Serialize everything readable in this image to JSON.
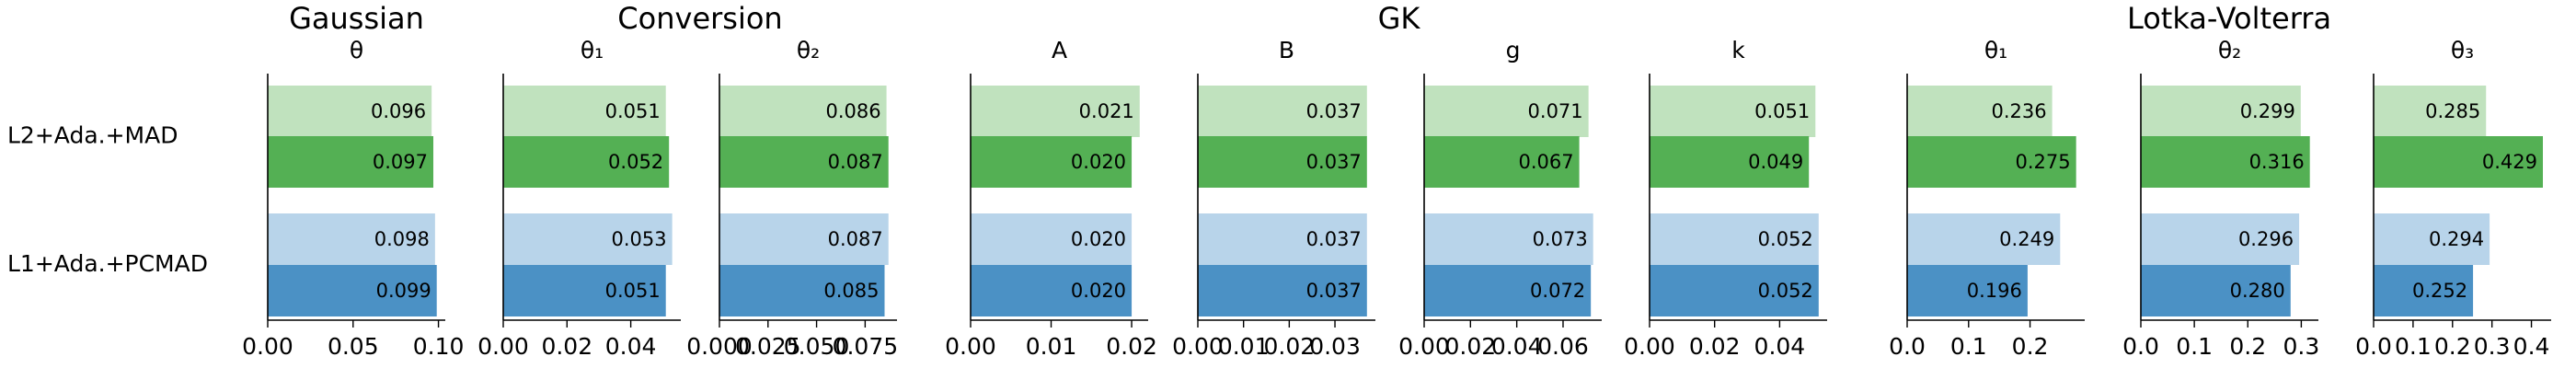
{
  "categories": [
    "L2+Ada.+MAD",
    "L1+Ada.+PCMAD"
  ],
  "colors": [
    [
      "#c0e2be",
      "#54b054"
    ],
    [
      "#b8d4ea",
      "#4b91c5"
    ]
  ],
  "chart_data": [
    {
      "title": "Gaussian",
      "panels": [
        {
          "type": "bar",
          "orientation": "horizontal",
          "subtitle": "θ",
          "series": [
            {
              "values": [
                0.096,
                0.098
              ],
              "value_labels": [
                "0.096",
                "0.098"
              ]
            },
            {
              "values": [
                0.097,
                0.099
              ],
              "value_labels": [
                "0.097",
                "0.099"
              ]
            }
          ],
          "xlim": [
            0,
            0.104
          ],
          "xticks": [
            {
              "value": 0,
              "label": "0.00"
            },
            {
              "value": 0.05,
              "label": "0.05"
            },
            {
              "value": 0.1,
              "label": "0.10"
            }
          ]
        }
      ]
    },
    {
      "title": "Conversion",
      "panels": [
        {
          "type": "bar",
          "orientation": "horizontal",
          "subtitle": "θ₁",
          "series": [
            {
              "values": [
                0.051,
                0.053
              ],
              "value_labels": [
                "0.051",
                "0.053"
              ]
            },
            {
              "values": [
                0.052,
                0.051
              ],
              "value_labels": [
                "0.052",
                "0.051"
              ]
            }
          ],
          "xlim": [
            0,
            0.0557
          ],
          "xticks": [
            {
              "value": 0,
              "label": "0.00"
            },
            {
              "value": 0.02,
              "label": "0.02"
            },
            {
              "value": 0.04,
              "label": "0.04"
            }
          ]
        },
        {
          "type": "bar",
          "orientation": "horizontal",
          "subtitle": "θ₂",
          "series": [
            {
              "values": [
                0.086,
                0.087
              ],
              "value_labels": [
                "0.086",
                "0.087"
              ]
            },
            {
              "values": [
                0.087,
                0.085
              ],
              "value_labels": [
                "0.087",
                "0.085"
              ]
            }
          ],
          "xlim": [
            0,
            0.0914
          ],
          "xticks": [
            {
              "value": 0,
              "label": "0.000"
            },
            {
              "value": 0.025,
              "label": "0.025"
            },
            {
              "value": 0.05,
              "label": "0.050"
            },
            {
              "value": 0.075,
              "label": "0.075"
            }
          ]
        }
      ]
    },
    {
      "title": "GK",
      "panels": [
        {
          "type": "bar",
          "orientation": "horizontal",
          "subtitle": "A",
          "series": [
            {
              "values": [
                0.021,
                0.02
              ],
              "value_labels": [
                "0.021",
                "0.020"
              ]
            },
            {
              "values": [
                0.02,
                0.02
              ],
              "value_labels": [
                "0.020",
                "0.020"
              ]
            }
          ],
          "xlim": [
            0,
            0.02205
          ],
          "xticks": [
            {
              "value": 0,
              "label": "0.00"
            },
            {
              "value": 0.01,
              "label": "0.01"
            },
            {
              "value": 0.02,
              "label": "0.02"
            }
          ]
        },
        {
          "type": "bar",
          "orientation": "horizontal",
          "subtitle": "B",
          "series": [
            {
              "values": [
                0.037,
                0.037
              ],
              "value_labels": [
                "0.037",
                "0.037"
              ]
            },
            {
              "values": [
                0.037,
                0.037
              ],
              "value_labels": [
                "0.037",
                "0.037"
              ]
            }
          ],
          "xlim": [
            0,
            0.03885
          ],
          "xticks": [
            {
              "value": 0,
              "label": "0.00"
            },
            {
              "value": 0.01,
              "label": "0.01"
            },
            {
              "value": 0.02,
              "label": "0.02"
            },
            {
              "value": 0.03,
              "label": "0.03"
            }
          ]
        },
        {
          "type": "bar",
          "orientation": "horizontal",
          "subtitle": "g",
          "series": [
            {
              "values": [
                0.071,
                0.073
              ],
              "value_labels": [
                "0.071",
                "0.073"
              ]
            },
            {
              "values": [
                0.067,
                0.072
              ],
              "value_labels": [
                "0.067",
                "0.072"
              ]
            }
          ],
          "xlim": [
            0,
            0.0767
          ],
          "xticks": [
            {
              "value": 0,
              "label": "0.00"
            },
            {
              "value": 0.02,
              "label": "0.02"
            },
            {
              "value": 0.04,
              "label": "0.04"
            },
            {
              "value": 0.06,
              "label": "0.06"
            }
          ]
        },
        {
          "type": "bar",
          "orientation": "horizontal",
          "subtitle": "k",
          "series": [
            {
              "values": [
                0.051,
                0.052
              ],
              "value_labels": [
                "0.051",
                "0.052"
              ]
            },
            {
              "values": [
                0.049,
                0.052
              ],
              "value_labels": [
                "0.049",
                "0.052"
              ]
            }
          ],
          "xlim": [
            0,
            0.0546
          ],
          "xticks": [
            {
              "value": 0,
              "label": "0.00"
            },
            {
              "value": 0.02,
              "label": "0.02"
            },
            {
              "value": 0.04,
              "label": "0.04"
            }
          ]
        }
      ]
    },
    {
      "title": "Lotka-Volterra",
      "panels": [
        {
          "type": "bar",
          "orientation": "horizontal",
          "subtitle": "θ₁",
          "series": [
            {
              "values": [
                0.236,
                0.249
              ],
              "value_labels": [
                "0.236",
                "0.249"
              ]
            },
            {
              "values": [
                0.275,
                0.196
              ],
              "value_labels": [
                "0.275",
                "0.196"
              ]
            }
          ],
          "xlim": [
            0,
            0.289
          ],
          "xticks": [
            {
              "value": 0,
              "label": "0.0"
            },
            {
              "value": 0.1,
              "label": "0.1"
            },
            {
              "value": 0.2,
              "label": "0.2"
            }
          ]
        },
        {
          "type": "bar",
          "orientation": "horizontal",
          "subtitle": "θ₂",
          "series": [
            {
              "values": [
                0.299,
                0.296
              ],
              "value_labels": [
                "0.299",
                "0.296"
              ]
            },
            {
              "values": [
                0.316,
                0.28
              ],
              "value_labels": [
                "0.316",
                "0.280"
              ]
            }
          ],
          "xlim": [
            0,
            0.332
          ],
          "xticks": [
            {
              "value": 0,
              "label": "0.0"
            },
            {
              "value": 0.1,
              "label": "0.1"
            },
            {
              "value": 0.2,
              "label": "0.2"
            },
            {
              "value": 0.3,
              "label": "0.3"
            }
          ]
        },
        {
          "type": "bar",
          "orientation": "horizontal",
          "subtitle": "θ₃",
          "series": [
            {
              "values": [
                0.285,
                0.294
              ],
              "value_labels": [
                "0.285",
                "0.294"
              ]
            },
            {
              "values": [
                0.429,
                0.252
              ],
              "value_labels": [
                "0.429",
                "0.252"
              ]
            }
          ],
          "xlim": [
            0,
            0.45
          ],
          "xticks": [
            {
              "value": 0,
              "label": "0.0"
            },
            {
              "value": 0.1,
              "label": "0.1"
            },
            {
              "value": 0.2,
              "label": "0.2"
            },
            {
              "value": 0.3,
              "label": "0.3"
            },
            {
              "value": 0.4,
              "label": "0.4"
            }
          ]
        }
      ]
    }
  ]
}
